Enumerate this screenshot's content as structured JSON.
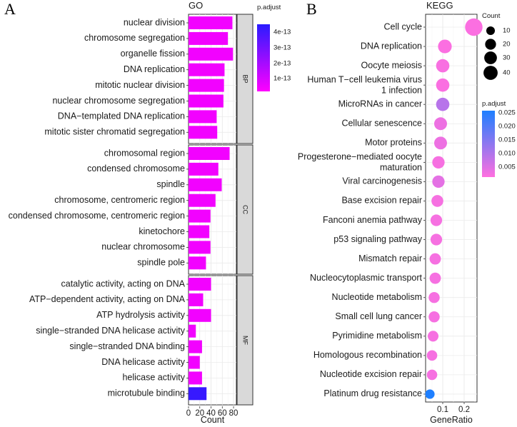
{
  "chart_data": [
    {
      "panel": "A",
      "type": "bar",
      "orientation": "horizontal",
      "title": "GO",
      "xlabel": "Count",
      "ylabel": "",
      "xlim": [
        0,
        85
      ],
      "xticks": [
        "0",
        "20",
        "40",
        "60",
        "80"
      ],
      "color_scale": {
        "title": "p.adjust",
        "ticks": [
          "4e-13",
          "3e-13",
          "2e-13",
          "1e-13"
        ],
        "low_color": "#ff00ff",
        "high_color": "#2a1bff"
      },
      "groups": [
        {
          "name": "BP",
          "bars": [
            {
              "term": "nuclear division",
              "count": 78,
              "p_adjust": 3e-14
            },
            {
              "term": "chromosome segregation",
              "count": 70,
              "p_adjust": 3e-14
            },
            {
              "term": "organelle fission",
              "count": 79,
              "p_adjust": 3e-14
            },
            {
              "term": "DNA replication",
              "count": 64,
              "p_adjust": 3e-14
            },
            {
              "term": "mitotic nuclear division",
              "count": 63,
              "p_adjust": 3e-14
            },
            {
              "term": "nuclear chromosome segregation",
              "count": 62,
              "p_adjust": 3e-14
            },
            {
              "term": "DNA−templated DNA replication",
              "count": 50,
              "p_adjust": 3e-14
            },
            {
              "term": "mitotic sister chromatid segregation",
              "count": 51,
              "p_adjust": 3e-14
            }
          ]
        },
        {
          "name": "CC",
          "bars": [
            {
              "term": "chromosomal region",
              "count": 73,
              "p_adjust": 3e-14
            },
            {
              "term": "condensed chromosome",
              "count": 53,
              "p_adjust": 3e-14
            },
            {
              "term": "spindle",
              "count": 59,
              "p_adjust": 3e-14
            },
            {
              "term": "chromosome, centromeric region",
              "count": 48,
              "p_adjust": 3e-14
            },
            {
              "term": "condensed chromosome, centromeric region",
              "count": 39,
              "p_adjust": 3e-14
            },
            {
              "term": "kinetochore",
              "count": 37,
              "p_adjust": 3e-14
            },
            {
              "term": "nuclear chromosome",
              "count": 39,
              "p_adjust": 3e-14
            },
            {
              "term": "spindle pole",
              "count": 31,
              "p_adjust": 3e-14
            }
          ]
        },
        {
          "name": "MF",
          "bars": [
            {
              "term": "catalytic activity, acting on DNA",
              "count": 40,
              "p_adjust": 3e-14
            },
            {
              "term": "ATP−dependent activity, acting on DNA",
              "count": 26,
              "p_adjust": 3e-14
            },
            {
              "term": "ATP hydrolysis activity",
              "count": 40,
              "p_adjust": 3e-14
            },
            {
              "term": "single−stranded DNA helicase activity",
              "count": 13,
              "p_adjust": 3e-14
            },
            {
              "term": "single−stranded DNA binding",
              "count": 24,
              "p_adjust": 3e-14
            },
            {
              "term": "DNA helicase activity",
              "count": 20,
              "p_adjust": 3e-14
            },
            {
              "term": "helicase activity",
              "count": 24,
              "p_adjust": 3e-14
            },
            {
              "term": "microtubule binding",
              "count": 32,
              "p_adjust": 4.5e-13
            }
          ]
        }
      ]
    },
    {
      "panel": "B",
      "type": "scatter",
      "title": "KEGG",
      "xlabel": "GeneRatio",
      "ylabel": "",
      "xlim": [
        0.02,
        0.26
      ],
      "xticks": [
        "0.1",
        "0.2"
      ],
      "size_legend": {
        "title": "Count",
        "values": [
          10,
          20,
          30,
          40
        ]
      },
      "color_scale": {
        "title": "p.adjust",
        "ticks": [
          "0.025",
          "0.020",
          "0.015",
          "0.010",
          "0.005"
        ],
        "low_color": "#ff6fe0",
        "high_color": "#1e7fff"
      },
      "points": [
        {
          "term": "Cell cycle",
          "gene_ratio": 0.245,
          "count": 45,
          "p_adjust": 0.0005
        },
        {
          "term": "DNA replication",
          "gene_ratio": 0.11,
          "count": 24,
          "p_adjust": 0.0005
        },
        {
          "term": "Oocyte meiosis",
          "gene_ratio": 0.1,
          "count": 22,
          "p_adjust": 0.0008
        },
        {
          "term": "Human T−cell leukemia virus\n1 infection",
          "gene_ratio": 0.1,
          "count": 22,
          "p_adjust": 0.0006
        },
        {
          "term": "MicroRNAs in cancer",
          "gene_ratio": 0.1,
          "count": 22,
          "p_adjust": 0.008
        },
        {
          "term": "Cellular senescence",
          "gene_ratio": 0.09,
          "count": 20,
          "p_adjust": 0.002
        },
        {
          "term": "Motor proteins",
          "gene_ratio": 0.09,
          "count": 20,
          "p_adjust": 0.002
        },
        {
          "term": "Progesterone−mediated oocyte\nmaturation",
          "gene_ratio": 0.08,
          "count": 18,
          "p_adjust": 0.001
        },
        {
          "term": "Viral carcinogenesis",
          "gene_ratio": 0.08,
          "count": 18,
          "p_adjust": 0.003
        },
        {
          "term": "Base excision repair",
          "gene_ratio": 0.075,
          "count": 16,
          "p_adjust": 0.001
        },
        {
          "term": "Fanconi anemia pathway",
          "gene_ratio": 0.07,
          "count": 15,
          "p_adjust": 0.001
        },
        {
          "term": "p53 signaling pathway",
          "gene_ratio": 0.07,
          "count": 15,
          "p_adjust": 0.001
        },
        {
          "term": "Mismatch repair",
          "gene_ratio": 0.065,
          "count": 14,
          "p_adjust": 0.001
        },
        {
          "term": "Nucleocytoplasmic transport",
          "gene_ratio": 0.065,
          "count": 14,
          "p_adjust": 0.001
        },
        {
          "term": "Nucleotide metabolism",
          "gene_ratio": 0.06,
          "count": 13,
          "p_adjust": 0.001
        },
        {
          "term": "Small cell lung cancer",
          "gene_ratio": 0.06,
          "count": 13,
          "p_adjust": 0.001
        },
        {
          "term": "Pyrimidine metabolism",
          "gene_ratio": 0.055,
          "count": 12,
          "p_adjust": 0.001
        },
        {
          "term": "Homologous recombination",
          "gene_ratio": 0.05,
          "count": 11,
          "p_adjust": 0.001
        },
        {
          "term": "Nucleotide excision repair",
          "gene_ratio": 0.05,
          "count": 11,
          "p_adjust": 0.001
        },
        {
          "term": "Platinum drug resistance",
          "gene_ratio": 0.04,
          "count": 8,
          "p_adjust": 0.025
        }
      ]
    }
  ]
}
